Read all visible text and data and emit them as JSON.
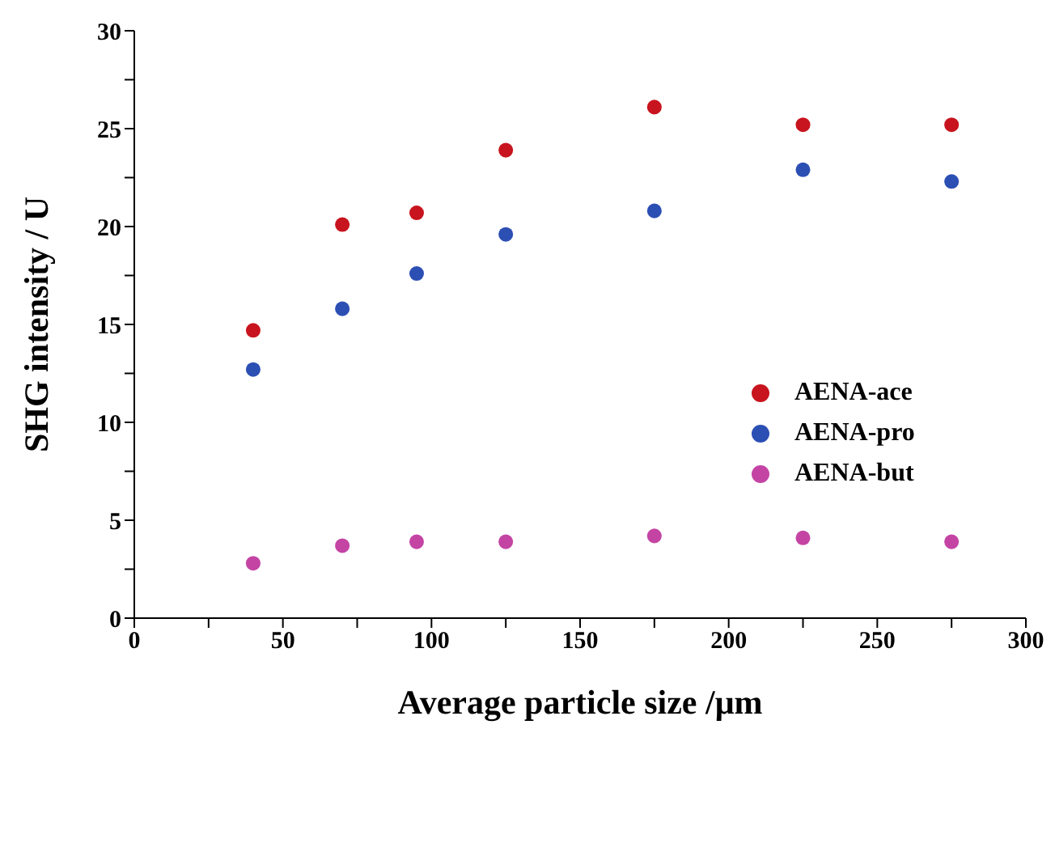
{
  "chart_data": {
    "type": "scatter",
    "xlabel": "Average particle size /μm",
    "ylabel": "SHG intensity / U",
    "x": [
      40,
      70,
      95,
      125,
      175,
      225,
      275
    ],
    "series": [
      {
        "name": "AENA-ace",
        "color": "#c8141e",
        "values": [
          14.7,
          20.1,
          20.7,
          23.9,
          26.1,
          25.2,
          25.2
        ]
      },
      {
        "name": "AENA-pro",
        "color": "#2c4fb4",
        "values": [
          12.7,
          15.8,
          17.6,
          19.6,
          20.8,
          22.9,
          22.3
        ]
      },
      {
        "name": "AENA-but",
        "color": "#c444a4",
        "values": [
          2.8,
          3.7,
          3.9,
          3.9,
          4.2,
          4.1,
          3.9
        ]
      }
    ],
    "xlim": [
      0,
      300
    ],
    "xticks": [
      0,
      {
        "value": 25,
        "label": null
      },
      50,
      {
        "value": 75,
        "label": null
      },
      100,
      {
        "value": 125,
        "label": null
      },
      150,
      {
        "value": 175,
        "label": null
      },
      200,
      {
        "value": 225,
        "label": null
      },
      250,
      {
        "value": 275,
        "label": null
      },
      300
    ],
    "ylim": [
      0,
      30
    ],
    "yticks": [
      0,
      {
        "value": 2.5,
        "label": null
      },
      5,
      {
        "value": 7.5,
        "label": null
      },
      10,
      {
        "value": 12.5,
        "label": null
      },
      15,
      {
        "value": 17.5,
        "label": null
      },
      20,
      {
        "value": 22.5,
        "label": null
      },
      25,
      {
        "value": 27.5,
        "label": null
      },
      30
    ],
    "grid": false,
    "legend": "right",
    "marker": "circle"
  }
}
